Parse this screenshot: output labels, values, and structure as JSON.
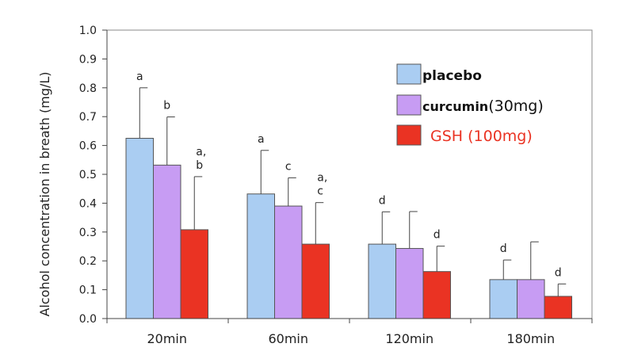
{
  "chart_data": {
    "type": "bar",
    "title": "",
    "xlabel": "",
    "ylabel": "Alcohol concentration in breath (mg/L)",
    "ylim": [
      0,
      1.0
    ],
    "yticks": [
      "0.0",
      "0.1",
      "0.2",
      "0.3",
      "0.4",
      "0.5",
      "0.6",
      "0.7",
      "0.8",
      "0.9",
      "1.0"
    ],
    "grid": false,
    "legend_position": "top-right",
    "categories": [
      "20min",
      "60min",
      "120min",
      "180min"
    ],
    "series": [
      {
        "name": "placebo",
        "color": "#aacdf2",
        "values": [
          0.625,
          0.432,
          0.258,
          0.135
        ],
        "errors": [
          0.175,
          0.151,
          0.112,
          0.068
        ],
        "labels": [
          "a",
          "a",
          "d",
          "d"
        ]
      },
      {
        "name": "curcumin",
        "dose": "(30mg)",
        "color": "#c79cf3",
        "values": [
          0.532,
          0.39,
          0.243,
          0.135
        ],
        "errors": [
          0.167,
          0.098,
          0.128,
          0.131
        ],
        "labels": [
          "b",
          "c",
          "",
          ""
        ]
      },
      {
        "name": "GSH (100mg)",
        "color": "#ea3323",
        "values": [
          0.308,
          0.258,
          0.163,
          0.077
        ],
        "errors": [
          0.184,
          0.144,
          0.088,
          0.043
        ],
        "labels": [
          "a,|b",
          "a,|c",
          "d",
          "d"
        ]
      }
    ]
  }
}
